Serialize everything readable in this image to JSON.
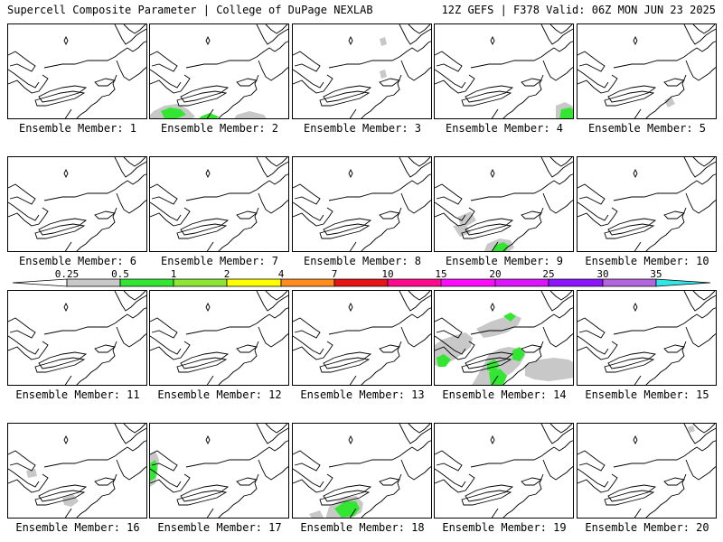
{
  "header": {
    "left": "Supercell Composite Parameter | College of DuPage NEXLAB",
    "right": "12Z GEFS | F378 Valid: 06Z MON JUN 23 2025"
  },
  "panel_label_prefix": "Ensemble Member: ",
  "members": [
    1,
    2,
    3,
    4,
    5,
    6,
    7,
    8,
    9,
    10,
    11,
    12,
    13,
    14,
    15,
    16,
    17,
    18,
    19,
    20
  ],
  "colorbar": {
    "ticks": [
      "0.25",
      "0.5",
      "1",
      "2",
      "4",
      "7",
      "10",
      "15",
      "20",
      "25",
      "30",
      "35"
    ],
    "colors": [
      "#c8c8c8",
      "#32e632",
      "#8ce632",
      "#ffff00",
      "#ff8c1e",
      "#e61414",
      "#ff0a8c",
      "#ff0aff",
      "#dc14ff",
      "#8c14ff",
      "#b464dc",
      "#32e6e6"
    ]
  },
  "colors": {
    "lt025": "#c8c8c8",
    "c05_1": "#32e632"
  }
}
